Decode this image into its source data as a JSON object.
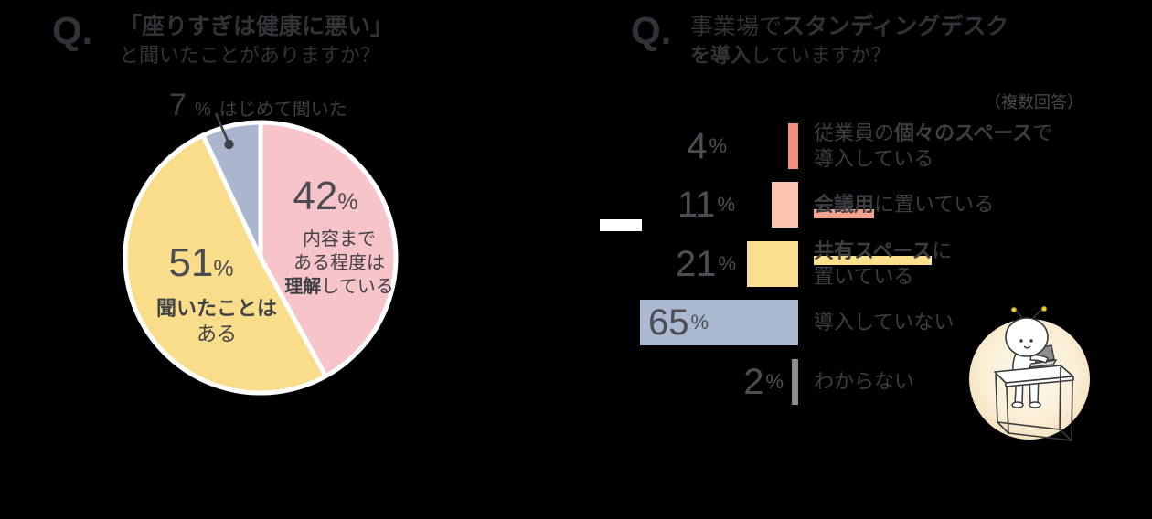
{
  "left_chart": {
    "q_mark": "Q.",
    "title_lines": [
      [
        {
          "t": "「座りすぎは健康に悪い」",
          "b": true
        }
      ],
      [
        {
          "t": "と聞いたことがありますか？",
          "b": false
        }
      ]
    ],
    "callout_label": "はじめて聞いた",
    "pink_lines": [
      [
        {
          "t": "内容まで",
          "b": false
        }
      ],
      [
        {
          "t": "ある程度は",
          "b": false
        }
      ],
      [
        {
          "t": "理解",
          "b": true
        },
        {
          "t": "している",
          "b": false
        }
      ]
    ],
    "yellow_lines": [
      [
        {
          "t": "聞いたことは",
          "b": true
        }
      ],
      [
        {
          "t": "ある",
          "b": false
        }
      ]
    ]
  },
  "right_chart": {
    "q_mark": "Q.",
    "title_lines": [
      [
        {
          "t": "事業場で",
          "b": false
        },
        {
          "t": "スタンディングデスク",
          "b": true
        }
      ],
      [
        {
          "t": "を導入",
          "b": true
        },
        {
          "t": "していますか？",
          "b": false
        }
      ]
    ],
    "note": "（複数回答）",
    "rows": [
      {
        "label": [
          [
            {
              "t": "従業員の",
              "b": false
            },
            {
              "t": "個々のスペース",
              "b": true
            },
            {
              "t": "で",
              "b": false
            }
          ],
          [
            {
              "t": "導入している",
              "b": false
            }
          ]
        ]
      },
      {
        "label": [
          [
            {
              "t": "会議用",
              "b": true,
              "hl": "#f5a28e"
            },
            {
              "t": "に置いている",
              "b": false
            }
          ]
        ]
      },
      {
        "label": [
          [
            {
              "t": "共有スペース",
              "b": true,
              "hl": "#fbe08e"
            },
            {
              "t": "に",
              "b": false
            }
          ],
          [
            {
              "t": "置いている",
              "b": false
            }
          ]
        ]
      },
      {
        "label": [
          [
            {
              "t": "導入していない",
              "b": false
            }
          ]
        ]
      },
      {
        "label": [
          [
            {
              "t": "わからない",
              "b": false
            }
          ]
        ]
      }
    ]
  },
  "chart_data": [
    {
      "type": "pie",
      "title": "「座りすぎは健康に悪い」と聞いたことがありますか？",
      "labels": [
        "内容まである程度は理解している",
        "聞いたことはある",
        "はじめて聞いた"
      ],
      "values": [
        42,
        51,
        7
      ],
      "colors": [
        "#f7c5c9",
        "#f9dd8a",
        "#a9b6ce"
      ],
      "unit": "%",
      "start_angle": "12-o-clock",
      "direction": "clockwise",
      "slice_border_color": "#ffffff"
    },
    {
      "type": "bar",
      "title": "事業場でスタンディングデスクを導入していますか？",
      "subtitle": "（複数回答）",
      "orientation": "horizontal-right-aligned",
      "categories": [
        "従業員の個々のスペースで導入している",
        "会議用に置いている",
        "共有スペースに置いている",
        "導入していない",
        "わからない"
      ],
      "values": [
        4,
        11,
        21,
        65,
        2
      ],
      "colors": [
        "#f1907b",
        "#fac4ae",
        "#fbdf90",
        "#aab8d0",
        "#8d8d8d"
      ],
      "unit": "%"
    }
  ],
  "colors": {
    "background": "#000000",
    "text_title": "#323338",
    "text_number": "#4d4e53",
    "text_label": "#3d3e43",
    "leader_dot": "#3f4045",
    "white_dash": "#ffffff",
    "highlight_salmon": "#f5a28e",
    "highlight_yellow": "#fbe08e"
  }
}
